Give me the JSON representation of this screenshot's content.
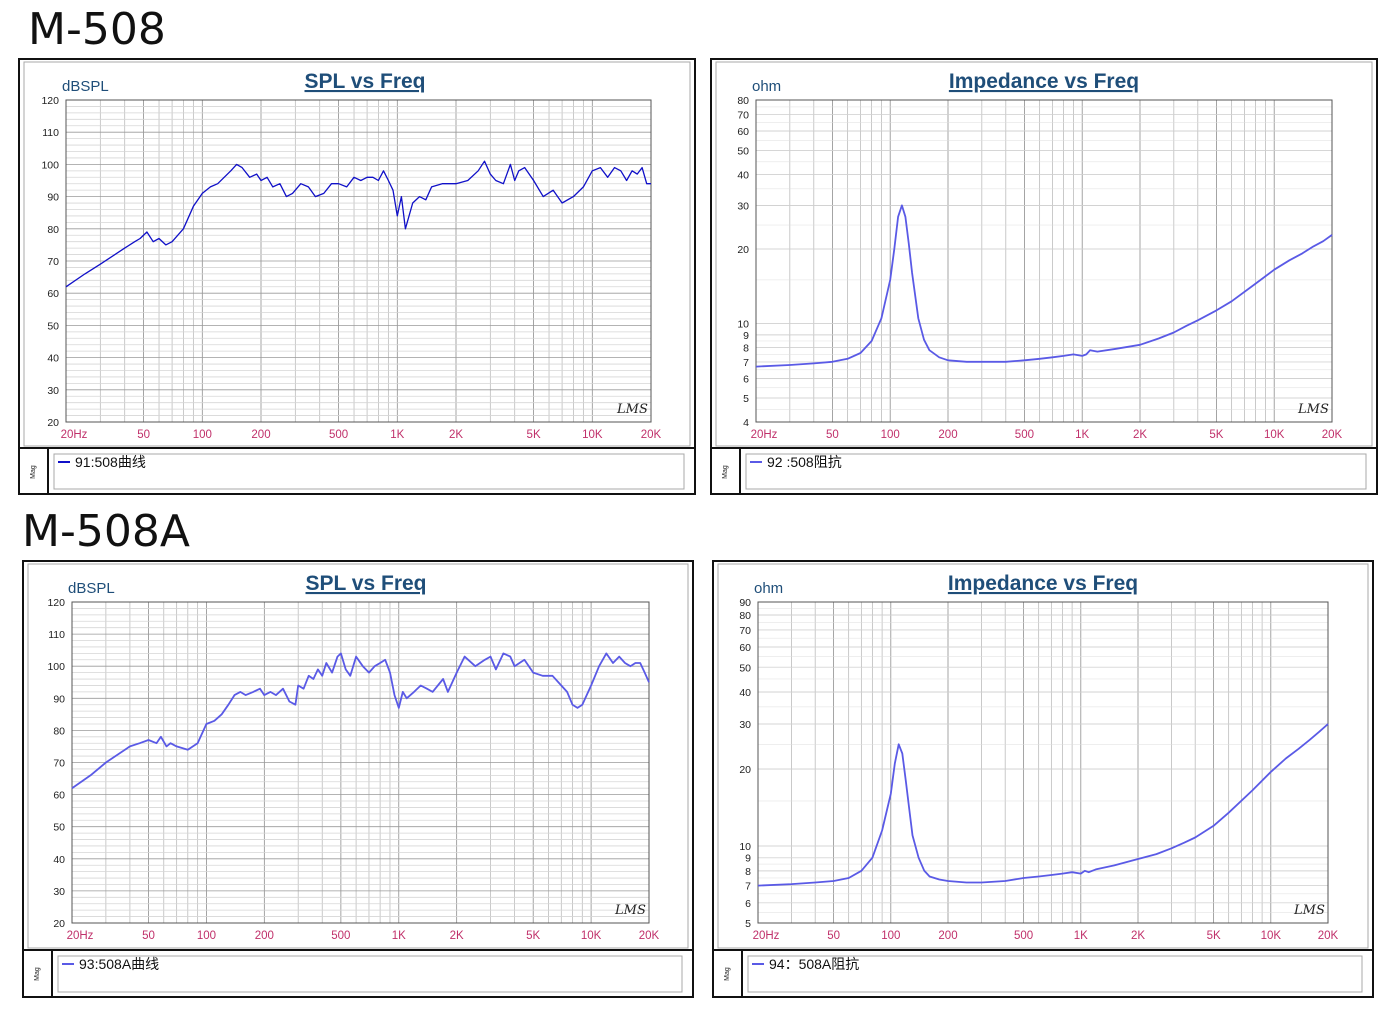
{
  "headings": {
    "top": "M-508",
    "bottom": "M-508A"
  },
  "colors": {
    "spl_trace_top": "#1010c8",
    "trace_light": "#5a5ae6",
    "title": "#1f4e79",
    "tick": "#c0306a",
    "grid": "#bcbcbc"
  },
  "freq_ticks": [
    {
      "f": 20,
      "label": "20Hz"
    },
    {
      "f": 50,
      "label": "50"
    },
    {
      "f": 100,
      "label": "100"
    },
    {
      "f": 200,
      "label": "200"
    },
    {
      "f": 500,
      "label": "500"
    },
    {
      "f": 1000,
      "label": "1K"
    },
    {
      "f": 2000,
      "label": "2K"
    },
    {
      "f": 5000,
      "label": "5K"
    },
    {
      "f": 10000,
      "label": "10K"
    },
    {
      "f": 20000,
      "label": "20K"
    }
  ],
  "watermark": "LMS",
  "side_label": "Mag",
  "chart_data": [
    {
      "id": "spl-508",
      "type": "line",
      "title": "SPL vs Freq",
      "ylabel": "dBSPL",
      "x_scale": "log",
      "xlim": [
        20,
        20000
      ],
      "ylim": [
        20,
        120
      ],
      "y_ticks": [
        120,
        110,
        100,
        90,
        80,
        70,
        60,
        50,
        40,
        30,
        20
      ],
      "grid": true,
      "series": [
        {
          "name": "91:508曲线",
          "x": [
            20,
            25,
            30,
            40,
            45,
            48,
            52,
            56,
            60,
            65,
            70,
            80,
            90,
            100,
            110,
            120,
            140,
            150,
            160,
            175,
            190,
            200,
            215,
            230,
            250,
            270,
            290,
            320,
            350,
            380,
            420,
            460,
            500,
            550,
            600,
            650,
            700,
            750,
            800,
            850,
            900,
            950,
            1000,
            1050,
            1100,
            1200,
            1300,
            1400,
            1500,
            1700,
            2000,
            2300,
            2600,
            2800,
            3000,
            3200,
            3500,
            3800,
            4000,
            4200,
            4500,
            5000,
            5600,
            6300,
            7000,
            8000,
            9000,
            10000,
            11000,
            12000,
            13000,
            14000,
            15000,
            16000,
            17000,
            18000,
            19000,
            20000
          ],
          "y": [
            62,
            66,
            69,
            74,
            76,
            77,
            79,
            76,
            77,
            75,
            76,
            80,
            87,
            91,
            93,
            94,
            98,
            100,
            99,
            96,
            97,
            95,
            96,
            93,
            94,
            90,
            91,
            94,
            93,
            90,
            91,
            94,
            94,
            93,
            96,
            95,
            96,
            96,
            95,
            98,
            95,
            92,
            84,
            90,
            80,
            88,
            90,
            89,
            93,
            94,
            94,
            95,
            98,
            101,
            97,
            95,
            94,
            100,
            95,
            98,
            99,
            95,
            90,
            92,
            88,
            90,
            93,
            98,
            99,
            96,
            99,
            98,
            95,
            98,
            97,
            99,
            94,
            94
          ]
        }
      ]
    },
    {
      "id": "imp-508",
      "type": "line",
      "title": "Impedance vs Freq",
      "ylabel": "ohm",
      "x_scale": "log",
      "y_scale": "log",
      "xlim": [
        20,
        20000
      ],
      "ylim": [
        4,
        80
      ],
      "y_ticks": [
        80,
        70,
        60,
        50,
        40,
        30,
        20,
        10,
        9,
        8,
        7,
        6,
        5,
        4
      ],
      "grid": true,
      "series": [
        {
          "name": "92 :508阻抗",
          "x": [
            20,
            30,
            40,
            50,
            60,
            70,
            80,
            90,
            100,
            105,
            110,
            115,
            120,
            125,
            130,
            140,
            150,
            160,
            180,
            200,
            250,
            300,
            400,
            500,
            600,
            700,
            800,
            900,
            1000,
            1050,
            1100,
            1200,
            1500,
            2000,
            2500,
            3000,
            3500,
            4000,
            5000,
            6000,
            8000,
            10000,
            12000,
            14000,
            16000,
            18000,
            20000
          ],
          "y": [
            6.7,
            6.8,
            6.9,
            7.0,
            7.2,
            7.6,
            8.5,
            10.5,
            15,
            20,
            27,
            30,
            27,
            21,
            16,
            10.5,
            8.6,
            7.8,
            7.3,
            7.1,
            7.0,
            7.0,
            7.0,
            7.1,
            7.2,
            7.3,
            7.4,
            7.5,
            7.4,
            7.5,
            7.8,
            7.7,
            7.9,
            8.2,
            8.7,
            9.2,
            9.8,
            10.3,
            11.3,
            12.3,
            14.5,
            16.5,
            18,
            19.2,
            20.5,
            21.5,
            22.8
          ]
        }
      ]
    },
    {
      "id": "spl-508a",
      "type": "line",
      "title": "SPL vs Freq",
      "ylabel": "dBSPL",
      "x_scale": "log",
      "xlim": [
        20,
        20000
      ],
      "ylim": [
        20,
        120
      ],
      "y_ticks": [
        120,
        110,
        100,
        90,
        80,
        70,
        60,
        50,
        40,
        30,
        20
      ],
      "grid": true,
      "series": [
        {
          "name": "93:508A曲线",
          "x": [
            20,
            25,
            30,
            40,
            45,
            50,
            55,
            58,
            62,
            65,
            70,
            80,
            90,
            100,
            110,
            120,
            130,
            140,
            150,
            160,
            175,
            190,
            200,
            215,
            230,
            250,
            270,
            290,
            300,
            320,
            340,
            360,
            380,
            400,
            420,
            450,
            480,
            500,
            530,
            560,
            600,
            650,
            700,
            750,
            800,
            850,
            900,
            950,
            1000,
            1050,
            1100,
            1200,
            1300,
            1400,
            1500,
            1700,
            1800,
            2000,
            2200,
            2500,
            2800,
            3000,
            3200,
            3500,
            3800,
            4000,
            4500,
            5000,
            5600,
            6300,
            7000,
            7500,
            8000,
            8500,
            9000,
            10000,
            11000,
            12000,
            13000,
            14000,
            15000,
            16000,
            17000,
            18000,
            19000,
            20000
          ],
          "y": [
            62,
            66,
            70,
            75,
            76,
            77,
            76,
            78,
            75,
            76,
            75,
            74,
            76,
            82,
            83,
            85,
            88,
            91,
            92,
            91,
            92,
            93,
            91,
            92,
            91,
            93,
            89,
            88,
            94,
            93,
            97,
            96,
            99,
            97,
            101,
            98,
            103,
            104,
            99,
            97,
            103,
            100,
            98,
            100,
            101,
            102,
            98,
            91,
            87,
            92,
            90,
            92,
            94,
            93,
            92,
            96,
            92,
            98,
            103,
            100,
            102,
            103,
            99,
            104,
            103,
            100,
            102,
            98,
            97,
            97,
            94,
            92,
            88,
            87,
            88,
            94,
            100,
            104,
            101,
            103,
            101,
            100,
            101,
            101,
            98,
            95
          ]
        }
      ]
    },
    {
      "id": "imp-508a",
      "type": "line",
      "title": "Impedance vs Freq",
      "ylabel": "ohm",
      "x_scale": "log",
      "y_scale": "log",
      "xlim": [
        20,
        20000
      ],
      "ylim": [
        5,
        90
      ],
      "y_ticks": [
        90,
        80,
        70,
        60,
        50,
        40,
        30,
        20,
        10,
        9,
        8,
        7,
        6,
        5
      ],
      "grid": true,
      "series": [
        {
          "name": "94：508A阻抗",
          "x": [
            20,
            30,
            40,
            50,
            60,
            70,
            80,
            90,
            100,
            105,
            110,
            115,
            120,
            125,
            130,
            140,
            150,
            160,
            180,
            200,
            250,
            300,
            400,
            500,
            600,
            700,
            800,
            900,
            1000,
            1050,
            1100,
            1200,
            1500,
            2000,
            2500,
            3000,
            3500,
            4000,
            5000,
            6000,
            8000,
            10000,
            12000,
            14000,
            16000,
            18000,
            20000
          ],
          "y": [
            7.0,
            7.1,
            7.2,
            7.3,
            7.5,
            8.0,
            9.0,
            11.5,
            16,
            21,
            25,
            23,
            18,
            14,
            11,
            9,
            8,
            7.6,
            7.4,
            7.3,
            7.2,
            7.2,
            7.3,
            7.5,
            7.6,
            7.7,
            7.8,
            7.9,
            7.8,
            8.0,
            7.9,
            8.1,
            8.4,
            8.9,
            9.3,
            9.8,
            10.3,
            10.8,
            12,
            13.5,
            16.5,
            19.5,
            22,
            24,
            26,
            28,
            30
          ]
        }
      ]
    }
  ]
}
